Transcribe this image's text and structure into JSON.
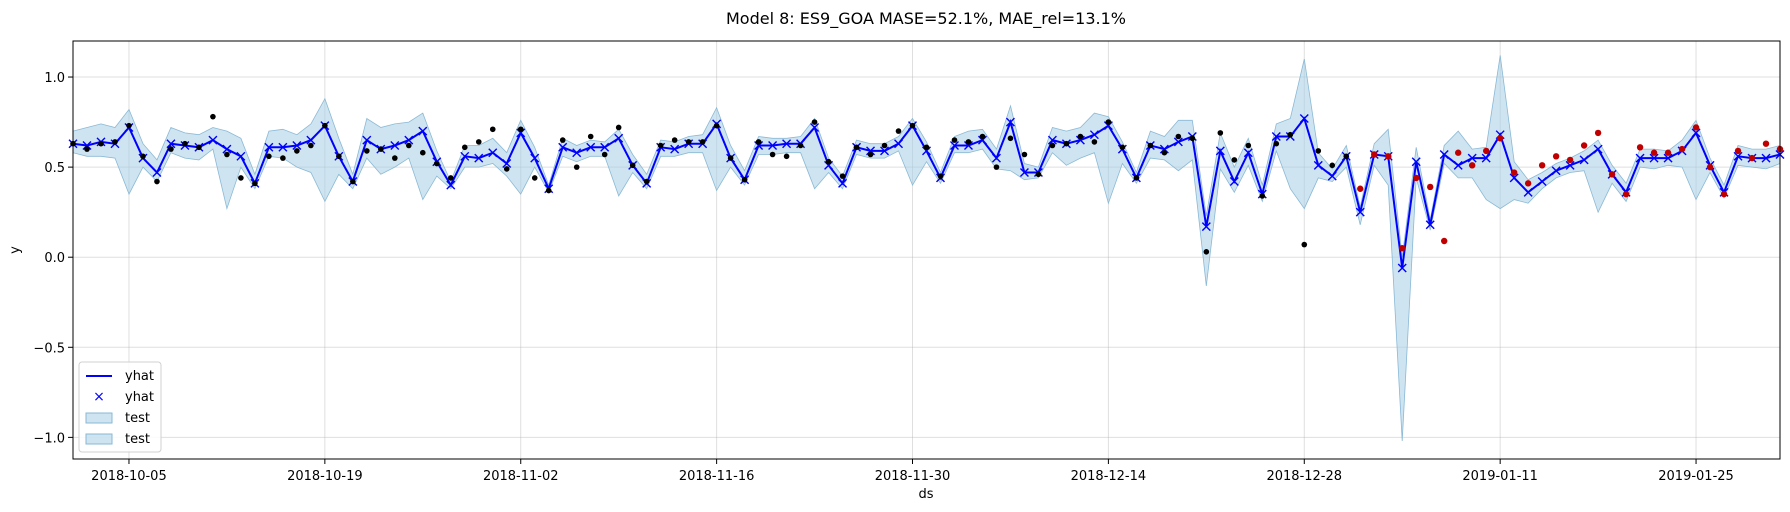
{
  "chart_data": {
    "type": "line",
    "title": "Model 8: ES9_GOA MASE=52.1%, MAE_rel=13.1%",
    "xlabel": "ds",
    "ylabel": "y",
    "xlim": [
      "2018-10-01",
      "2019-01-31"
    ],
    "ylim": [
      -1.12,
      1.2
    ],
    "grid": true,
    "x_ticks": [
      "2018-10-05",
      "2018-10-19",
      "2018-11-02",
      "2018-11-16",
      "2018-11-30",
      "2018-12-14",
      "2018-12-28",
      "2019-01-11",
      "2019-01-25"
    ],
    "y_ticks": [
      "−1.0",
      "−0.5",
      "0.0",
      "0.5",
      "1.0"
    ],
    "y_tick_values": [
      -1.0,
      -0.5,
      0.0,
      0.5,
      1.0
    ],
    "legend": {
      "position": "lower-left",
      "entries": [
        {
          "label": "yhat",
          "kind": "line"
        },
        {
          "label": "yhat",
          "kind": "marker"
        },
        {
          "label": "test",
          "kind": "band"
        },
        {
          "label": "test",
          "kind": "band"
        }
      ]
    },
    "colors": {
      "yhat": "#0000ff",
      "band": "#a6cde3",
      "observed": "#000000",
      "test_points": "#c00000"
    },
    "series": [
      {
        "name": "yhat",
        "start_date": "2018-10-01",
        "values": [
          0.63,
          0.62,
          0.64,
          0.63,
          0.72,
          0.55,
          0.47,
          0.63,
          0.62,
          0.61,
          0.65,
          0.6,
          0.56,
          0.41,
          0.61,
          0.61,
          0.62,
          0.65,
          0.73,
          0.56,
          0.42,
          0.65,
          0.6,
          0.62,
          0.65,
          0.7,
          0.53,
          0.4,
          0.56,
          0.55,
          0.58,
          0.52,
          0.69,
          0.55,
          0.38,
          0.61,
          0.58,
          0.61,
          0.61,
          0.66,
          0.51,
          0.41,
          0.61,
          0.6,
          0.63,
          0.63,
          0.74,
          0.55,
          0.43,
          0.62,
          0.62,
          0.63,
          0.63,
          0.72,
          0.51,
          0.41,
          0.61,
          0.59,
          0.59,
          0.63,
          0.73,
          0.59,
          0.44,
          0.62,
          0.62,
          0.65,
          0.55,
          0.75,
          0.47,
          0.47,
          0.65,
          0.63,
          0.65,
          0.68,
          0.73,
          0.6,
          0.44,
          0.62,
          0.6,
          0.64,
          0.67,
          0.17,
          0.59,
          0.42,
          0.58,
          0.35,
          0.67,
          0.67,
          0.77,
          0.51,
          0.45,
          0.56,
          0.25,
          0.57,
          0.56,
          -0.06,
          0.53,
          0.18,
          0.57,
          0.51,
          0.55,
          0.55,
          0.68,
          0.44,
          0.36,
          0.42,
          0.48,
          0.51,
          0.54,
          0.6,
          0.46,
          0.36,
          0.55,
          0.55,
          0.55,
          0.59,
          0.69,
          0.51,
          0.36,
          0.56,
          0.55,
          0.55,
          0.57
        ]
      },
      {
        "name": "test",
        "start_date": "2018-10-01",
        "upper": [
          0.7,
          0.72,
          0.74,
          0.72,
          0.82,
          0.63,
          0.54,
          0.72,
          0.69,
          0.68,
          0.72,
          0.7,
          0.66,
          0.46,
          0.7,
          0.71,
          0.68,
          0.74,
          0.88,
          0.66,
          0.46,
          0.77,
          0.72,
          0.74,
          0.75,
          0.8,
          0.59,
          0.42,
          0.62,
          0.62,
          0.66,
          0.58,
          0.76,
          0.61,
          0.4,
          0.66,
          0.62,
          0.65,
          0.64,
          0.71,
          0.57,
          0.46,
          0.65,
          0.64,
          0.67,
          0.68,
          0.83,
          0.62,
          0.48,
          0.67,
          0.66,
          0.66,
          0.67,
          0.77,
          0.55,
          0.45,
          0.65,
          0.63,
          0.63,
          0.67,
          0.77,
          0.64,
          0.47,
          0.67,
          0.7,
          0.71,
          0.6,
          0.84,
          0.52,
          0.5,
          0.72,
          0.7,
          0.72,
          0.8,
          0.78,
          0.64,
          0.47,
          0.7,
          0.67,
          0.76,
          0.76,
          0.23,
          0.69,
          0.5,
          0.66,
          0.4,
          0.74,
          0.77,
          1.1,
          0.58,
          0.49,
          0.62,
          0.28,
          0.63,
          0.71,
          0.0,
          0.61,
          0.21,
          0.62,
          0.7,
          0.6,
          0.61,
          1.12,
          0.53,
          0.43,
          0.47,
          0.52,
          0.55,
          0.59,
          0.65,
          0.51,
          0.41,
          0.6,
          0.6,
          0.59,
          0.65,
          0.76,
          0.55,
          0.4,
          0.62,
          0.6,
          0.6,
          0.62
        ],
        "lower": [
          0.58,
          0.56,
          0.56,
          0.55,
          0.35,
          0.5,
          0.42,
          0.58,
          0.55,
          0.54,
          0.6,
          0.27,
          0.5,
          0.38,
          0.56,
          0.55,
          0.5,
          0.47,
          0.31,
          0.46,
          0.38,
          0.55,
          0.46,
          0.5,
          0.55,
          0.32,
          0.45,
          0.38,
          0.5,
          0.5,
          0.52,
          0.45,
          0.35,
          0.5,
          0.36,
          0.56,
          0.53,
          0.56,
          0.56,
          0.34,
          0.47,
          0.38,
          0.56,
          0.56,
          0.58,
          0.58,
          0.37,
          0.5,
          0.4,
          0.57,
          0.57,
          0.58,
          0.58,
          0.38,
          0.47,
          0.38,
          0.57,
          0.55,
          0.55,
          0.59,
          0.4,
          0.53,
          0.41,
          0.58,
          0.58,
          0.6,
          0.49,
          0.48,
          0.43,
          0.44,
          0.58,
          0.51,
          0.55,
          0.58,
          0.3,
          0.52,
          0.41,
          0.55,
          0.54,
          0.48,
          0.54,
          -0.16,
          0.49,
          0.36,
          0.51,
          0.31,
          0.59,
          0.38,
          0.27,
          0.44,
          0.42,
          0.5,
          0.18,
          0.51,
          0.4,
          -1.02,
          0.44,
          0.15,
          0.52,
          0.44,
          0.44,
          0.32,
          0.27,
          0.32,
          0.3,
          0.38,
          0.44,
          0.47,
          0.48,
          0.25,
          0.41,
          0.31,
          0.5,
          0.49,
          0.51,
          0.5,
          0.32,
          0.47,
          0.33,
          0.51,
          0.5,
          0.49,
          0.52
        ]
      },
      {
        "name": "observed",
        "start_date": "2018-10-01",
        "values": [
          0.63,
          0.6,
          0.63,
          0.64,
          0.73,
          0.56,
          0.42,
          0.6,
          0.63,
          0.61,
          0.78,
          0.57,
          0.44,
          0.41,
          0.56,
          0.55,
          0.59,
          0.62,
          0.73,
          0.56,
          0.42,
          0.59,
          0.6,
          0.55,
          0.62,
          0.58,
          0.52,
          0.44,
          0.61,
          0.64,
          0.71,
          0.49,
          0.71,
          0.44,
          0.37,
          0.65,
          0.5,
          0.67,
          0.57,
          0.72,
          0.51,
          0.42,
          0.62,
          0.65,
          0.64,
          0.64,
          0.73,
          0.55,
          0.43,
          0.64,
          0.57,
          0.56,
          0.62,
          0.75,
          0.53,
          0.45,
          0.61,
          0.57,
          0.62,
          0.7,
          0.73,
          0.61,
          0.45,
          0.65,
          0.64,
          0.67,
          0.5,
          0.66,
          0.57,
          0.46,
          0.62,
          0.63,
          0.67,
          0.64,
          0.75,
          0.61,
          0.44,
          0.62,
          0.58,
          0.67,
          0.66,
          0.03,
          0.69,
          0.54,
          0.62,
          0.34,
          0.63,
          0.68,
          0.07,
          0.59,
          0.51,
          0.56,
          0.38,
          0.57,
          0.56,
          0.05,
          0.44,
          0.39,
          0.09,
          0.58,
          0.51,
          0.59,
          0.66,
          0.47,
          0.41,
          0.51,
          0.56,
          0.54,
          0.62,
          0.69,
          0.46,
          0.35,
          0.61,
          0.58,
          0.58,
          0.6,
          0.72,
          0.5,
          0.35,
          0.59,
          0.55,
          0.63,
          0.6
        ]
      }
    ]
  }
}
